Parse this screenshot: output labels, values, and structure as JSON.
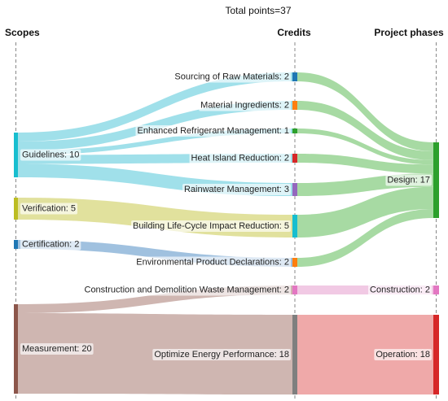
{
  "title": "Total points=37",
  "columns": {
    "scopes": "Scopes",
    "credits": "Credits",
    "phases": "Project phases"
  },
  "scopes": [
    {
      "id": "guidelines",
      "label": "Guidelines: 10",
      "value": 10,
      "color": "#17becf"
    },
    {
      "id": "verification",
      "label": "Verification: 5",
      "value": 5,
      "color": "#bcbd22"
    },
    {
      "id": "certification",
      "label": "Certification: 2",
      "value": 2,
      "color": "#1f77b4"
    },
    {
      "id": "measurement",
      "label": "Measurement: 20",
      "value": 20,
      "color": "#8c564b"
    }
  ],
  "credits": [
    {
      "id": "sourcing",
      "label": "Sourcing of Raw Materials: 2",
      "value": 2,
      "color": "#1f77b4"
    },
    {
      "id": "ingredients",
      "label": "Material Ingredients: 2",
      "value": 2,
      "color": "#ff7f0e"
    },
    {
      "id": "refrigerant",
      "label": "Enhanced Refrigerant Management: 1",
      "value": 1,
      "color": "#2ca02c"
    },
    {
      "id": "heatisland",
      "label": "Heat Island Reduction: 2",
      "value": 2,
      "color": "#d62728"
    },
    {
      "id": "rainwater",
      "label": "Rainwater Management: 3",
      "value": 3,
      "color": "#9467bd"
    },
    {
      "id": "lifecycle",
      "label": "Building Life-Cycle Impact Reduction: 5",
      "value": 5,
      "color": "#17becf"
    },
    {
      "id": "epd",
      "label": "Environmental Product Declarations: 2",
      "value": 2,
      "color": "#ff7f0e"
    },
    {
      "id": "waste",
      "label": "Construction and Demolition Waste Management: 2",
      "value": 2,
      "color": "#e377c2"
    },
    {
      "id": "energy",
      "label": "Optimize Energy Performance: 18",
      "value": 18,
      "color": "#7f7f7f"
    }
  ],
  "phases": [
    {
      "id": "design",
      "label": "Design: 17",
      "value": 17,
      "color": "#2ca02c"
    },
    {
      "id": "construction",
      "label": "Construction: 2",
      "value": 2,
      "color": "#e377c2"
    },
    {
      "id": "operation",
      "label": "Operation: 18",
      "value": 18,
      "color": "#d62728"
    }
  ],
  "links_scope_credit": [
    {
      "from": "guidelines",
      "to": "sourcing",
      "value": 2
    },
    {
      "from": "guidelines",
      "to": "ingredients",
      "value": 2
    },
    {
      "from": "guidelines",
      "to": "refrigerant",
      "value": 1
    },
    {
      "from": "guidelines",
      "to": "heatisland",
      "value": 2
    },
    {
      "from": "guidelines",
      "to": "rainwater",
      "value": 3
    },
    {
      "from": "verification",
      "to": "lifecycle",
      "value": 5
    },
    {
      "from": "certification",
      "to": "epd",
      "value": 2
    },
    {
      "from": "measurement",
      "to": "waste",
      "value": 2
    },
    {
      "from": "measurement",
      "to": "energy",
      "value": 18
    }
  ],
  "links_credit_phase": [
    {
      "from": "sourcing",
      "to": "design",
      "value": 2
    },
    {
      "from": "ingredients",
      "to": "design",
      "value": 2
    },
    {
      "from": "refrigerant",
      "to": "design",
      "value": 1
    },
    {
      "from": "heatisland",
      "to": "design",
      "value": 2
    },
    {
      "from": "rainwater",
      "to": "design",
      "value": 3
    },
    {
      "from": "lifecycle",
      "to": "design",
      "value": 5
    },
    {
      "from": "epd",
      "to": "design",
      "value": 2
    },
    {
      "from": "waste",
      "to": "construction",
      "value": 2
    },
    {
      "from": "energy",
      "to": "operation",
      "value": 18
    }
  ],
  "flow_colors": {
    "guidelines": "#8fdbe6",
    "verification": "#dcdc8c",
    "certification": "#8fb6d9",
    "measurement": "#c7a9a3",
    "design": "#98d493",
    "construction": "#eebfdf",
    "operation": "#ec9a9a"
  }
}
